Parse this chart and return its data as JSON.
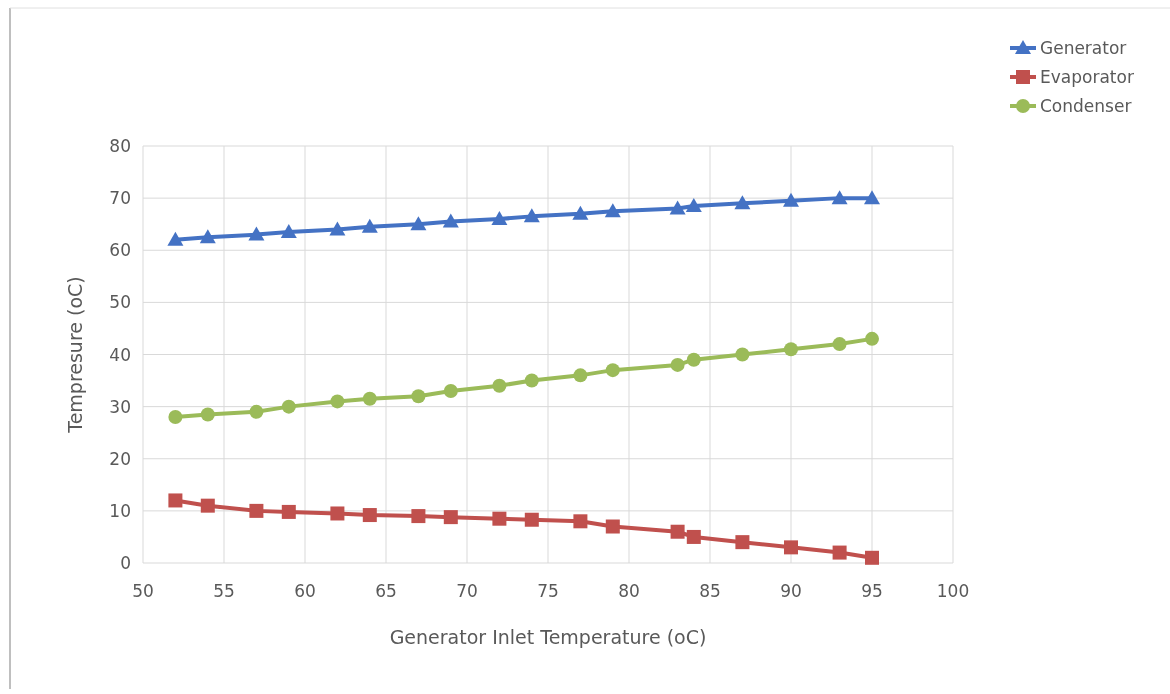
{
  "chart_data": {
    "type": "line",
    "xlabel": "Generator Inlet Temperature (oC)",
    "ylabel": "Tempresure (oC)",
    "x": [
      52,
      54,
      57,
      59,
      62,
      64,
      67,
      69,
      72,
      74,
      77,
      79,
      83,
      84,
      87,
      90,
      93,
      95
    ],
    "series": [
      {
        "name": "Generator",
        "color": "#4472c4",
        "marker": "triangle",
        "values": [
          62,
          62.5,
          63,
          63.5,
          64,
          64.5,
          65,
          65.5,
          66,
          66.5,
          67,
          67.5,
          68,
          68.5,
          69,
          69.5,
          70,
          70
        ]
      },
      {
        "name": "Evaporator",
        "color": "#c0504d",
        "marker": "square",
        "values": [
          12,
          11,
          10,
          9.8,
          9.5,
          9.2,
          9,
          8.8,
          8.5,
          8.3,
          8,
          7,
          6,
          5,
          4,
          3,
          2,
          1
        ]
      },
      {
        "name": "Condenser",
        "color": "#9bbb59",
        "marker": "circle",
        "values": [
          28,
          28.5,
          29,
          30,
          31,
          31.5,
          32,
          33,
          34,
          35,
          36,
          37,
          38,
          39,
          40,
          41,
          42,
          43
        ]
      }
    ],
    "xlim": [
      50,
      100
    ],
    "xticks": [
      50,
      55,
      60,
      65,
      70,
      75,
      80,
      85,
      90,
      95,
      100
    ],
    "ylim": [
      0,
      80
    ],
    "yticks": [
      0,
      10,
      20,
      30,
      40,
      50,
      60,
      70,
      80
    ],
    "grid": true,
    "legend": "top right"
  }
}
